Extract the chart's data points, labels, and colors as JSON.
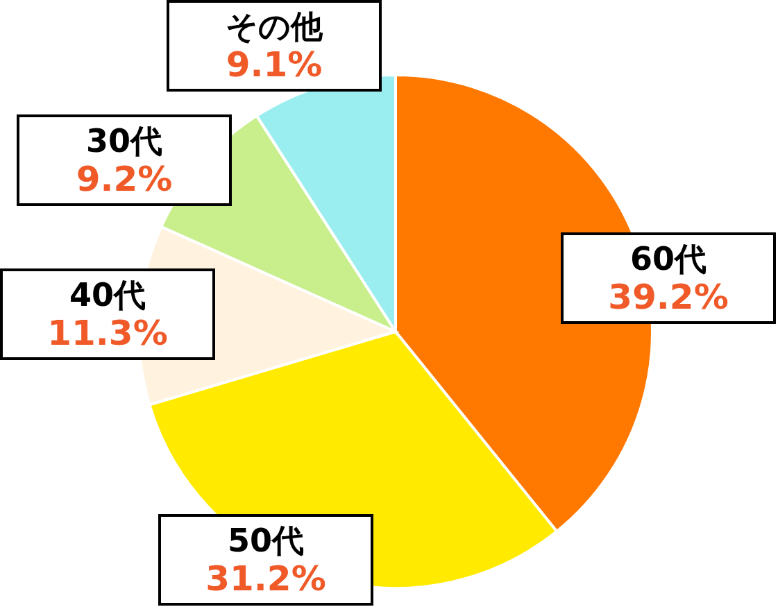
{
  "chart_data": {
    "type": "pie",
    "categories": [
      "60代",
      "50代",
      "40代",
      "30代",
      "その他"
    ],
    "values": [
      39.2,
      31.2,
      11.3,
      9.2,
      9.1
    ],
    "value_labels": [
      "39.2%",
      "31.2%",
      "11.3%",
      "9.2%",
      "9.1%"
    ],
    "colors": [
      "#ff7800",
      "#ffea00",
      "#fff3e0",
      "#c9ee8c",
      "#9beef0"
    ]
  }
}
